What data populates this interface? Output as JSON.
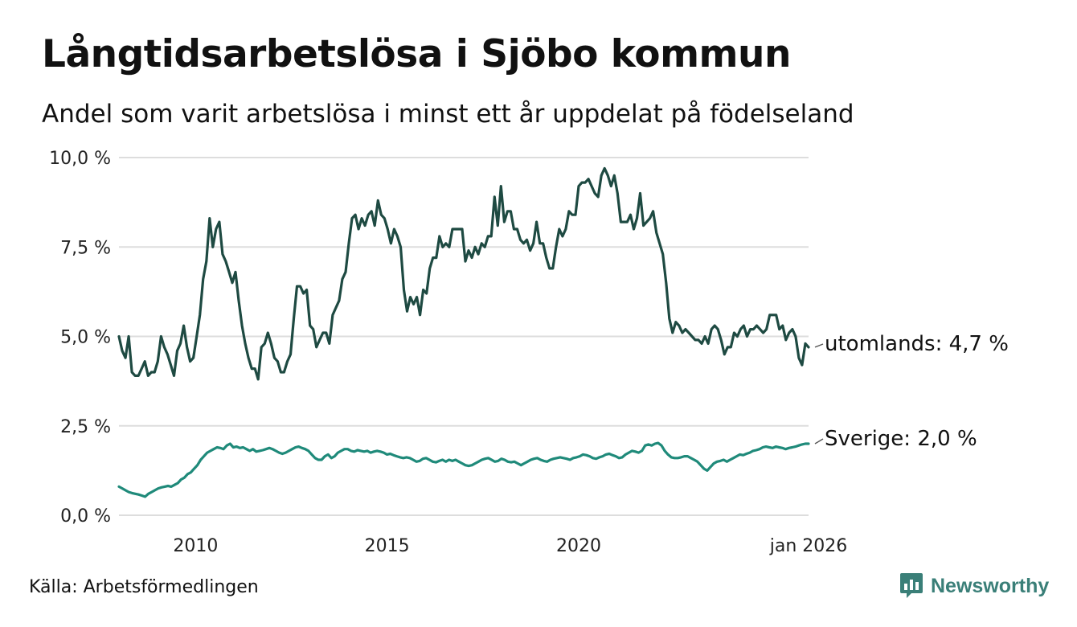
{
  "header": {
    "title": "Långtidsarbetslösa i Sjöbo kommun",
    "subtitle": "Andel som varit arbetslösa i minst ett år uppdelat på födelseland"
  },
  "footer": {
    "source": "Källa: Arbetsförmedlingen",
    "brand": "Newsworthy"
  },
  "colors": {
    "utomlands": "#1e4a42",
    "sverige": "#1f8a7a",
    "grid": "#dddddd",
    "brand": "#3a7f78"
  },
  "chart_data": {
    "type": "line",
    "title": "Långtidsarbetslösa i Sjöbo kommun",
    "subtitle": "Andel som varit arbetslösa i minst ett år uppdelat på födelseland",
    "xlabel": "",
    "ylabel": "",
    "x_start": 2008.0,
    "x_step": 0.0833333,
    "xlim": [
      2008.0,
      2026.0
    ],
    "ylim": [
      0,
      10
    ],
    "y_ticks": [
      0,
      2.5,
      5,
      7.5,
      10
    ],
    "y_tick_labels": [
      "0,0 %",
      "2,5 %",
      "5,0 %",
      "7,5 %",
      "10,0 %"
    ],
    "x_ticks": [
      2010,
      2015,
      2020,
      2026.0
    ],
    "x_tick_labels": [
      "2010",
      "2015",
      "2020",
      "jan 2026"
    ],
    "grid": true,
    "series": [
      {
        "name": "utomlands",
        "end_label": "utomlands: 4,7 %",
        "values": [
          5.0,
          4.6,
          4.4,
          5.0,
          4.0,
          3.9,
          3.9,
          4.1,
          4.3,
          3.9,
          4.0,
          4.0,
          4.3,
          5.0,
          4.7,
          4.5,
          4.2,
          3.9,
          4.6,
          4.8,
          5.3,
          4.7,
          4.3,
          4.4,
          5.0,
          5.6,
          6.6,
          7.1,
          8.3,
          7.5,
          8.0,
          8.2,
          7.3,
          7.1,
          6.8,
          6.5,
          6.8,
          6.0,
          5.3,
          4.8,
          4.4,
          4.1,
          4.1,
          3.8,
          4.7,
          4.8,
          5.1,
          4.8,
          4.4,
          4.3,
          4.0,
          4.0,
          4.3,
          4.5,
          5.5,
          6.4,
          6.4,
          6.2,
          6.3,
          5.3,
          5.2,
          4.7,
          4.9,
          5.1,
          5.1,
          4.8,
          5.6,
          5.8,
          6.0,
          6.6,
          6.8,
          7.6,
          8.3,
          8.4,
          8.0,
          8.3,
          8.1,
          8.4,
          8.5,
          8.1,
          8.8,
          8.4,
          8.3,
          8.0,
          7.6,
          8.0,
          7.8,
          7.5,
          6.3,
          5.7,
          6.1,
          5.9,
          6.1,
          5.6,
          6.3,
          6.2,
          6.9,
          7.2,
          7.2,
          7.8,
          7.5,
          7.6,
          7.5,
          8.0,
          8.0,
          8.0,
          8.0,
          7.1,
          7.4,
          7.2,
          7.5,
          7.3,
          7.6,
          7.5,
          7.8,
          7.8,
          8.9,
          8.1,
          9.2,
          8.2,
          8.5,
          8.5,
          8.0,
          8.0,
          7.7,
          7.6,
          7.7,
          7.4,
          7.6,
          8.2,
          7.6,
          7.6,
          7.2,
          6.9,
          6.9,
          7.5,
          8.0,
          7.8,
          8.0,
          8.5,
          8.4,
          8.4,
          9.2,
          9.3,
          9.3,
          9.4,
          9.2,
          9.0,
          8.9,
          9.5,
          9.7,
          9.5,
          9.2,
          9.5,
          9.0,
          8.2,
          8.2,
          8.2,
          8.4,
          8.0,
          8.3,
          9.0,
          8.1,
          8.2,
          8.3,
          8.5,
          7.9,
          7.6,
          7.3,
          6.5,
          5.5,
          5.1,
          5.4,
          5.3,
          5.1,
          5.2,
          5.1,
          5.0,
          4.9,
          4.9,
          4.8,
          5.0,
          4.8,
          5.2,
          5.3,
          5.2,
          4.9,
          4.5,
          4.7,
          4.7,
          5.1,
          5.0,
          5.2,
          5.3,
          5.0,
          5.2,
          5.2,
          5.3,
          5.2,
          5.1,
          5.2,
          5.6,
          5.6,
          5.6,
          5.2,
          5.3,
          4.9,
          5.1,
          5.2,
          5.0,
          4.4,
          4.2,
          4.8,
          4.7
        ]
      },
      {
        "name": "Sverige",
        "end_label": "Sverige: 2,0 %",
        "values": [
          0.8,
          0.75,
          0.7,
          0.65,
          0.62,
          0.6,
          0.58,
          0.55,
          0.52,
          0.6,
          0.65,
          0.7,
          0.75,
          0.78,
          0.8,
          0.82,
          0.8,
          0.85,
          0.9,
          1.0,
          1.05,
          1.15,
          1.2,
          1.3,
          1.4,
          1.55,
          1.65,
          1.75,
          1.8,
          1.85,
          1.9,
          1.88,
          1.85,
          1.95,
          2.0,
          1.9,
          1.92,
          1.88,
          1.9,
          1.85,
          1.8,
          1.85,
          1.78,
          1.8,
          1.82,
          1.85,
          1.88,
          1.85,
          1.8,
          1.75,
          1.72,
          1.75,
          1.8,
          1.85,
          1.9,
          1.92,
          1.88,
          1.85,
          1.8,
          1.7,
          1.6,
          1.55,
          1.55,
          1.65,
          1.7,
          1.6,
          1.65,
          1.75,
          1.8,
          1.85,
          1.85,
          1.8,
          1.78,
          1.82,
          1.8,
          1.78,
          1.8,
          1.75,
          1.78,
          1.8,
          1.78,
          1.75,
          1.7,
          1.72,
          1.68,
          1.65,
          1.62,
          1.6,
          1.62,
          1.6,
          1.55,
          1.5,
          1.52,
          1.58,
          1.6,
          1.55,
          1.5,
          1.48,
          1.52,
          1.55,
          1.5,
          1.55,
          1.52,
          1.55,
          1.5,
          1.45,
          1.4,
          1.38,
          1.4,
          1.45,
          1.5,
          1.55,
          1.58,
          1.6,
          1.55,
          1.5,
          1.52,
          1.58,
          1.55,
          1.5,
          1.48,
          1.5,
          1.45,
          1.4,
          1.45,
          1.5,
          1.55,
          1.58,
          1.6,
          1.55,
          1.52,
          1.5,
          1.55,
          1.58,
          1.6,
          1.62,
          1.6,
          1.58,
          1.55,
          1.6,
          1.62,
          1.65,
          1.7,
          1.68,
          1.65,
          1.6,
          1.58,
          1.62,
          1.65,
          1.7,
          1.72,
          1.68,
          1.65,
          1.6,
          1.62,
          1.7,
          1.75,
          1.8,
          1.78,
          1.75,
          1.8,
          1.95,
          1.98,
          1.95,
          2.0,
          2.02,
          1.95,
          1.8,
          1.7,
          1.62,
          1.6,
          1.6,
          1.62,
          1.65,
          1.65,
          1.6,
          1.55,
          1.5,
          1.4,
          1.3,
          1.25,
          1.35,
          1.45,
          1.5,
          1.52,
          1.55,
          1.5,
          1.55,
          1.6,
          1.65,
          1.7,
          1.68,
          1.72,
          1.75,
          1.8,
          1.82,
          1.85,
          1.9,
          1.92,
          1.9,
          1.88,
          1.92,
          1.9,
          1.88,
          1.85,
          1.88,
          1.9,
          1.92,
          1.95,
          1.98,
          2.0,
          2.0
        ]
      }
    ]
  }
}
